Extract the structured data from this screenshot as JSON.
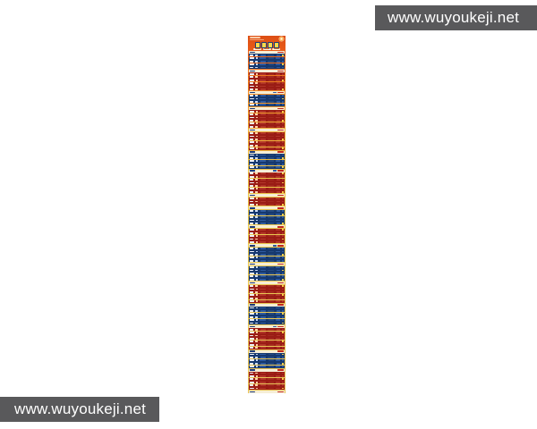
{
  "watermark": {
    "text": "www.wuyoukeji.net",
    "bar_color": "#59595b"
  },
  "poster": {
    "description": "tall narrow infographic strip, orange-to-gold gradient, unreadable micro text",
    "header": {
      "meta_lines": 2,
      "title_glyph_count": 4,
      "subtitle_tag_count": 3
    },
    "colors": {
      "gradient_top": "#dd4f15",
      "gradient_bottom": "#e8c258",
      "blue_row": "#16386e",
      "red_row": "#9a1c15",
      "section_header": "#f6eed6",
      "accent": "#ffd94a"
    },
    "sections": [
      {
        "theme": "blue",
        "rows": 5
      },
      {
        "theme": "red",
        "rows": 6
      },
      {
        "theme": "blue",
        "rows": 4
      },
      {
        "theme": "red",
        "rows": 6
      },
      {
        "theme": "red",
        "rows": 6
      },
      {
        "theme": "blue",
        "rows": 5
      },
      {
        "theme": "red",
        "rows": 7
      },
      {
        "theme": "red",
        "rows": 3
      },
      {
        "theme": "blue",
        "rows": 5
      },
      {
        "theme": "red",
        "rows": 5
      },
      {
        "theme": "blue",
        "rows": 5
      },
      {
        "theme": "blue",
        "rows": 5
      },
      {
        "theme": "red",
        "rows": 6
      },
      {
        "theme": "blue",
        "rows": 6
      },
      {
        "theme": "red",
        "rows": 7
      },
      {
        "theme": "blue",
        "rows": 5
      },
      {
        "theme": "red",
        "rows": 6
      },
      {
        "theme": "blue",
        "rows": 5
      }
    ],
    "footer": {
      "has_qr_code": true,
      "text_lines": 3
    }
  }
}
